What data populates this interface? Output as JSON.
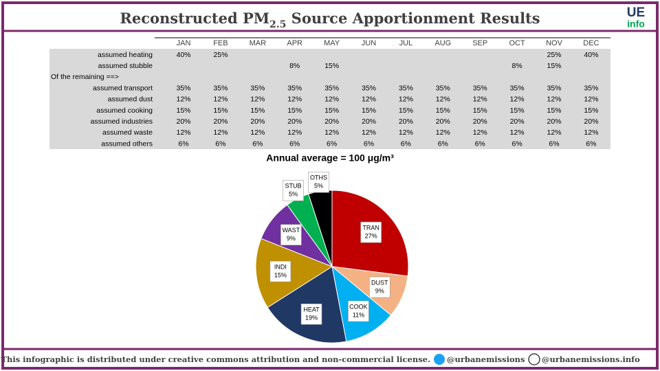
{
  "header": {
    "title_main": "Reconstructed PM",
    "title_sub": "2.5",
    "title_rest": " Source Apportionment Results",
    "logo_top": "UE",
    "logo_bottom": "info"
  },
  "table": {
    "columns": [
      "JAN",
      "FEB",
      "MAR",
      "APR",
      "MAY",
      "JUN",
      "JUL",
      "AUG",
      "SEP",
      "OCT",
      "NOV",
      "DEC"
    ],
    "rows": [
      {
        "label": "assumed heating",
        "cells": [
          "40%",
          "25%",
          null,
          null,
          null,
          null,
          null,
          null,
          null,
          null,
          "25%",
          "40%"
        ]
      },
      {
        "label": "assumed stubble",
        "cells": [
          null,
          null,
          null,
          "8%",
          "15%",
          null,
          null,
          null,
          null,
          "8%",
          "15%",
          null
        ]
      },
      {
        "label": "Of the remaining ==>"
      },
      {
        "label": "assumed transport",
        "cells": [
          "35%",
          "35%",
          "35%",
          "35%",
          "35%",
          "35%",
          "35%",
          "35%",
          "35%",
          "35%",
          "35%",
          "35%"
        ]
      },
      {
        "label": "assumed dust",
        "cells": [
          "12%",
          "12%",
          "12%",
          "12%",
          "12%",
          "12%",
          "12%",
          "12%",
          "12%",
          "12%",
          "12%",
          "12%"
        ]
      },
      {
        "label": "assumed cooking",
        "cells": [
          "15%",
          "15%",
          "15%",
          "15%",
          "15%",
          "15%",
          "15%",
          "15%",
          "15%",
          "15%",
          "15%",
          "15%"
        ]
      },
      {
        "label": "assumed industries",
        "cells": [
          "20%",
          "20%",
          "20%",
          "20%",
          "20%",
          "20%",
          "20%",
          "20%",
          "20%",
          "20%",
          "20%",
          "20%"
        ]
      },
      {
        "label": "assumed waste",
        "cells": [
          "12%",
          "12%",
          "12%",
          "12%",
          "12%",
          "12%",
          "12%",
          "12%",
          "12%",
          "12%",
          "12%",
          "12%"
        ]
      },
      {
        "label": "assumed others",
        "cells": [
          "6%",
          "6%",
          "6%",
          "6%",
          "6%",
          "6%",
          "6%",
          "6%",
          "6%",
          "6%",
          "6%",
          "6%"
        ]
      }
    ]
  },
  "chart_data": {
    "type": "pie",
    "title": "Annual average = 100 μg/m³",
    "categories": [
      "TRAN",
      "DUST",
      "COOK",
      "HEAT",
      "INDI",
      "WAST",
      "STUB",
      "OTHS"
    ],
    "values": [
      27,
      9,
      11,
      19,
      15,
      9,
      5,
      5
    ],
    "value_labels": [
      "27%",
      "9%",
      "11%",
      "19%",
      "15%",
      "9%",
      "5%",
      "5%"
    ],
    "colors": [
      "#c00000",
      "#f4b183",
      "#00b0f0",
      "#203864",
      "#bf9000",
      "#7030a0",
      "#00b050",
      "#000000"
    ]
  },
  "footer": {
    "license": "This infographic is distributed under creative commons attribution and non-commercial license.",
    "twitter": "@urbanemissions",
    "web": "@urbanemissions.info"
  }
}
